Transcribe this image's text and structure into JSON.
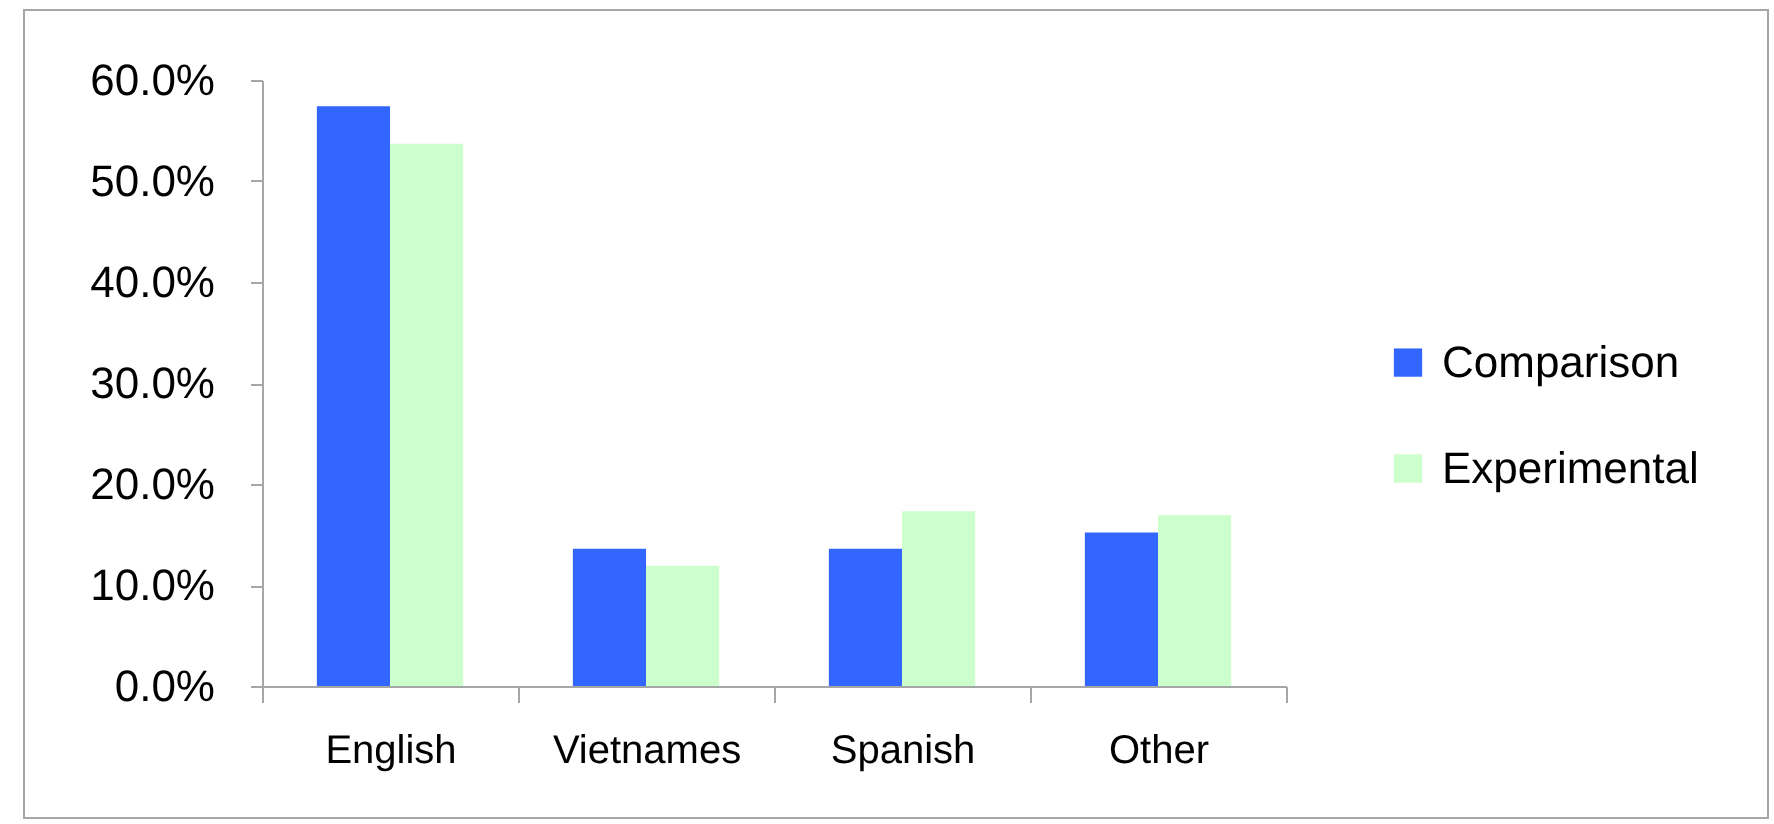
{
  "chart_data": {
    "type": "bar",
    "categories": [
      "English",
      "Vietnames",
      "Spanish",
      "Other"
    ],
    "series": [
      {
        "name": "Comparison",
        "color": "#3366ff",
        "values": [
          57.4,
          13.6,
          13.6,
          15.2
        ]
      },
      {
        "name": "Experimental",
        "color": "#ccffcc",
        "values": [
          53.7,
          11.9,
          17.3,
          16.9
        ]
      }
    ],
    "ylim": [
      0,
      60
    ],
    "yticks": [
      {
        "value": 0,
        "label": "0.0%"
      },
      {
        "value": 10,
        "label": "10.0%"
      },
      {
        "value": 20,
        "label": "20.0%"
      },
      {
        "value": 30,
        "label": "30.0%"
      },
      {
        "value": 40,
        "label": "40.0%"
      },
      {
        "value": 50,
        "label": "50.0%"
      },
      {
        "value": 60,
        "label": "60.0%"
      }
    ],
    "grid": false,
    "legend": "right"
  }
}
